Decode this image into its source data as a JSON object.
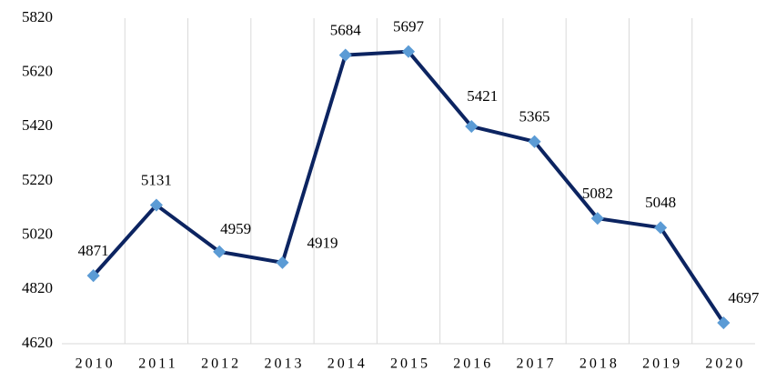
{
  "chart_data": {
    "type": "line",
    "categories": [
      "2010",
      "2011",
      "2012",
      "2013",
      "2014",
      "2015",
      "2016",
      "2017",
      "2018",
      "2019",
      "2020"
    ],
    "series": [
      {
        "color": "#0c2461",
        "marker_color": "#5b9bd5",
        "values": [
          4871,
          5131,
          4959,
          4919,
          5684,
          5697,
          5421,
          5365,
          5082,
          5048,
          4697
        ]
      }
    ],
    "ylim": [
      4620,
      5820
    ],
    "yticks": [
      4620,
      4820,
      5020,
      5220,
      5420,
      5620,
      5820
    ],
    "grid": "x"
  }
}
